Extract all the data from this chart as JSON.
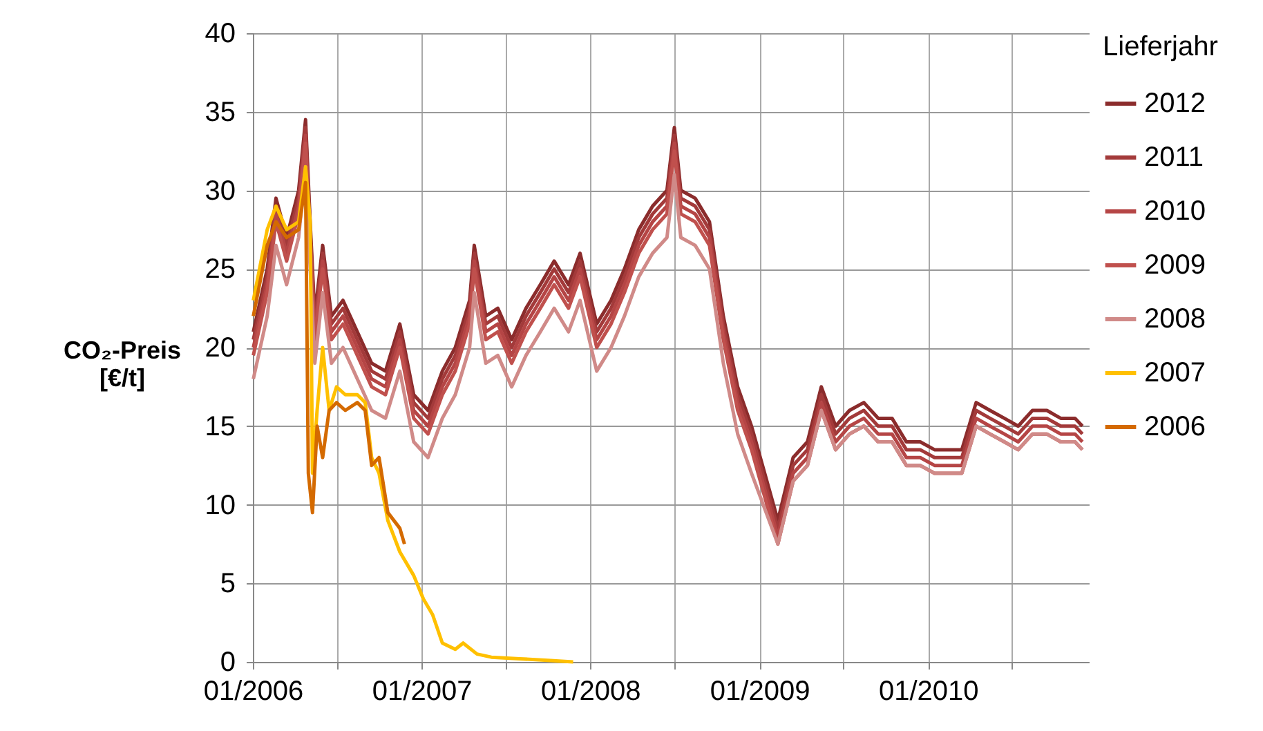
{
  "chart_data": {
    "type": "line",
    "ylabel": "CO₂-Preis\n[€/t]",
    "legend_title": "Lieferjahr",
    "legend": "right",
    "grid": true,
    "xlim": [
      "2006-01-01",
      "2010-12-15"
    ],
    "ylim": [
      0,
      40
    ],
    "yticks": [
      0,
      5,
      10,
      15,
      20,
      25,
      30,
      35,
      40
    ],
    "xticks": [
      {
        "value": "2006-01-01",
        "label": "01/2006"
      },
      {
        "value": "2006-07-01",
        "label": null
      },
      {
        "value": "2007-01-01",
        "label": "01/2007"
      },
      {
        "value": "2007-07-01",
        "label": null
      },
      {
        "value": "2008-01-01",
        "label": "01/2008"
      },
      {
        "value": "2008-07-01",
        "label": null
      },
      {
        "value": "2009-01-01",
        "label": "01/2009"
      },
      {
        "value": "2009-07-01",
        "label": null
      },
      {
        "value": "2010-01-01",
        "label": "01/2010"
      },
      {
        "value": "2010-07-01",
        "label": null
      }
    ],
    "x": [
      "2006-01-02",
      "2006-02-01",
      "2006-02-20",
      "2006-03-15",
      "2006-04-10",
      "2006-04-25",
      "2006-05-05",
      "2006-05-15",
      "2006-06-01",
      "2006-06-20",
      "2006-07-15",
      "2006-08-15",
      "2006-09-15",
      "2006-10-15",
      "2006-11-15",
      "2006-12-15",
      "2007-01-15",
      "2007-02-15",
      "2007-03-15",
      "2007-04-15",
      "2007-04-25",
      "2007-05-20",
      "2007-06-15",
      "2007-07-15",
      "2007-08-15",
      "2007-09-15",
      "2007-10-15",
      "2007-11-15",
      "2007-12-10",
      "2008-01-15",
      "2008-02-15",
      "2008-03-15",
      "2008-04-15",
      "2008-05-15",
      "2008-06-15",
      "2008-07-01",
      "2008-07-15",
      "2008-08-15",
      "2008-09-15",
      "2008-10-15",
      "2008-11-15",
      "2008-12-15",
      "2009-02-10",
      "2009-03-15",
      "2009-04-15",
      "2009-05-15",
      "2009-06-15",
      "2009-07-15",
      "2009-08-15",
      "2009-09-15",
      "2009-10-15",
      "2009-11-15",
      "2009-12-15",
      "2010-01-15",
      "2010-02-15",
      "2010-03-15",
      "2010-04-15",
      "2010-05-15",
      "2010-06-15",
      "2010-07-15",
      "2010-08-15",
      "2010-09-15",
      "2010-10-15",
      "2010-11-15",
      "2010-12-01"
    ],
    "series": [
      {
        "name": "2012",
        "color": "#8b2c2c",
        "values": [
          21,
          25,
          29.5,
          27,
          30,
          34.5,
          28,
          22,
          26.5,
          22,
          23,
          21,
          19,
          18.5,
          21.5,
          17,
          16,
          18.5,
          20,
          23,
          26.5,
          22,
          22.5,
          20.5,
          22.5,
          24,
          25.5,
          24,
          26,
          21.5,
          23,
          25,
          27.5,
          29,
          30,
          34,
          30,
          29.5,
          28,
          22,
          17.5,
          15,
          9,
          13,
          14,
          17.5,
          15,
          16,
          16.5,
          15.5,
          15.5,
          14,
          14,
          13.5,
          13.5,
          13.5,
          16.5,
          16,
          15.5,
          15,
          16,
          16,
          15.5,
          15.5,
          15
        ]
      },
      {
        "name": "2011",
        "color": "#a33a3a",
        "values": [
          20.5,
          24.5,
          29,
          26.5,
          29.5,
          34,
          27.5,
          21.5,
          26,
          21.5,
          22.5,
          20.5,
          18.5,
          18,
          21,
          16.5,
          15.5,
          18,
          19.5,
          22.5,
          26,
          21.5,
          22,
          20,
          22,
          23.5,
          25,
          23.5,
          25.5,
          21,
          22.5,
          24.5,
          27,
          28.5,
          29.5,
          33.5,
          29.5,
          29,
          27.5,
          21.5,
          17,
          14.5,
          8.5,
          12.5,
          13.5,
          17,
          14.5,
          15.5,
          16,
          15,
          15,
          13.5,
          13.5,
          13,
          13,
          13,
          16,
          15.5,
          15,
          14.5,
          15.5,
          15.5,
          15,
          15,
          14.5
        ]
      },
      {
        "name": "2010",
        "color": "#b54545",
        "values": [
          20,
          24,
          28.5,
          26,
          29,
          33.5,
          27,
          21,
          25.5,
          21,
          22,
          20,
          18,
          17.5,
          20.5,
          16,
          15,
          17.5,
          19,
          22,
          25.5,
          21,
          21.5,
          19.5,
          21.5,
          23,
          24.5,
          23,
          25,
          20.5,
          22,
          24,
          26.5,
          28,
          29,
          33,
          29,
          28.5,
          27,
          21,
          16.5,
          14,
          8,
          12,
          13,
          16.5,
          14,
          15,
          15.5,
          14.5,
          14.5,
          13,
          13,
          12.5,
          12.5,
          12.5,
          15.5,
          15,
          14.5,
          14,
          15,
          15,
          14.5,
          14.5,
          14
        ]
      },
      {
        "name": "2009",
        "color": "#c0504d",
        "values": [
          19.5,
          23.5,
          28,
          25.5,
          28.5,
          33,
          26.5,
          20.5,
          25,
          20.5,
          21.5,
          19.5,
          17.5,
          17,
          20,
          15.5,
          14.5,
          17,
          18.5,
          21.5,
          25,
          20.5,
          21,
          19,
          21,
          22.5,
          24,
          22.5,
          24.5,
          20,
          21.5,
          23.5,
          26,
          27.5,
          28.5,
          32.5,
          28.5,
          28,
          26.5,
          20.5,
          16,
          13.5,
          7.5,
          11.5,
          12.5,
          16,
          13.5,
          14.5,
          15,
          14,
          14,
          12.5,
          12.5,
          12,
          12,
          12,
          15,
          14.5,
          14,
          13.5,
          14.5,
          14.5,
          14,
          14,
          13.5
        ]
      },
      {
        "name": "2008",
        "color": "#d08a88",
        "values": [
          18,
          22,
          26.5,
          24,
          27,
          31.5,
          25,
          19,
          23.5,
          19,
          20,
          18,
          16,
          15.5,
          18.5,
          14,
          13,
          15.5,
          17,
          20,
          23.5,
          19,
          19.5,
          17.5,
          19.5,
          21,
          22.5,
          21,
          23,
          18.5,
          20,
          22,
          24.5,
          26,
          27,
          31,
          27,
          26.5,
          25,
          19,
          14.5,
          12,
          7.5,
          11.5,
          12.5,
          16,
          13.5,
          14.5,
          15,
          14,
          14,
          12.5,
          12.5,
          12,
          12,
          12,
          15,
          14.5,
          14,
          13.5,
          14.5,
          14.5,
          14,
          14,
          13.5
        ]
      },
      {
        "name": "2007",
        "color": "#ffc000",
        "x": [
          "2006-01-02",
          "2006-02-01",
          "2006-02-20",
          "2006-03-15",
          "2006-04-10",
          "2006-04-25",
          "2006-05-05",
          "2006-05-10",
          "2006-05-20",
          "2006-06-01",
          "2006-06-15",
          "2006-07-01",
          "2006-07-20",
          "2006-08-15",
          "2006-09-01",
          "2006-09-15",
          "2006-10-01",
          "2006-10-20",
          "2006-11-15",
          "2006-12-15",
          "2007-01-05",
          "2007-01-25",
          "2007-02-15",
          "2007-03-15",
          "2007-04-01",
          "2007-05-01",
          "2007-06-01",
          "2007-08-01",
          "2007-10-01",
          "2007-11-25"
        ],
        "values": [
          23,
          27.5,
          29,
          27.5,
          28,
          31.5,
          28,
          12,
          16,
          20,
          16,
          17.5,
          17,
          17,
          16.5,
          13,
          12,
          9,
          7,
          5.5,
          4,
          3,
          1.2,
          0.8,
          1.2,
          0.5,
          0.3,
          0.2,
          0.1,
          0
        ]
      },
      {
        "name": "2006",
        "color": "#d46a00",
        "x": [
          "2006-01-02",
          "2006-02-01",
          "2006-02-20",
          "2006-03-15",
          "2006-04-10",
          "2006-04-25",
          "2006-05-01",
          "2006-05-10",
          "2006-05-20",
          "2006-06-01",
          "2006-06-15",
          "2006-07-01",
          "2006-07-20",
          "2006-08-15",
          "2006-09-01",
          "2006-09-15",
          "2006-10-01",
          "2006-10-20",
          "2006-11-15",
          "2006-11-25"
        ],
        "values": [
          22,
          26.5,
          28,
          27,
          27.5,
          30.5,
          12,
          9.5,
          15,
          13,
          16,
          16.5,
          16,
          16.5,
          16,
          12.5,
          13,
          9.5,
          8.5,
          7.5
        ]
      }
    ]
  }
}
